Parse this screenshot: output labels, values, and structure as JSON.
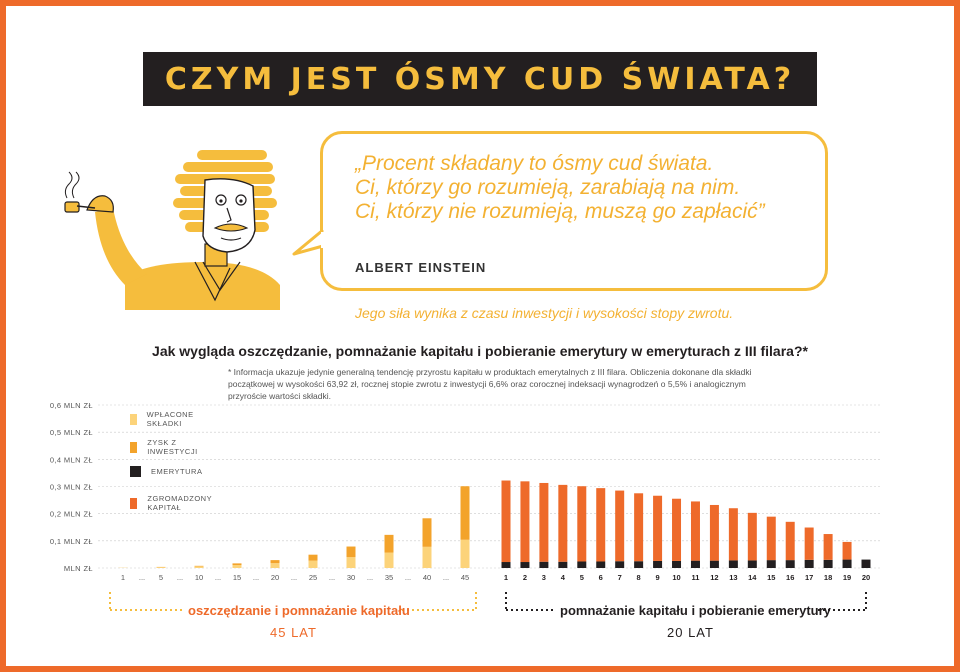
{
  "header": {
    "title": "CZYM JEST ÓSMY CUD ŚWIATA?"
  },
  "quote": {
    "text": "„Procent składany to ósmy cud świata.\nCi, którzy go rozumieją, zarabiają na nim.\nCi, którzy nie rozumieją, muszą go zapłacić”",
    "author": "ALBERT EINSTEIN"
  },
  "tagline": "Jego siła wynika z czasu inwestycji i wysokości stopy zwrotu.",
  "question": "Jak wygląda oszczędzanie, pomnażanie kapitału i pobieranie emerytury w emeryturach z III filara?*",
  "footnote": "* Informacja ukazuje jedynie generalną tendencję przyrostu kapitału w produktach emerytalnych z III filara. Obliczenia dokonane dla składki początkowej w wysokości 63,92 zł, rocznej stopie zwrotu z inwestycji 6,6% oraz corocznej indeksacji wynagrodzeń o 5,5% i analogicznym przyroście wartości składki.",
  "phases": {
    "saving": {
      "label": "oszczędzanie i pomnażanie kapitału",
      "years": "45 LAT"
    },
    "payout": {
      "label": "pomnażanie kapitału i pobieranie emerytury",
      "years": "20 LAT"
    }
  },
  "colors": {
    "contributions": "#fcd37a",
    "returns": "#f3a32b",
    "pension": "#231f20",
    "capital": "#ee6a2a",
    "accent": "#f5bd3d"
  },
  "chart_data": {
    "type": "bar",
    "y_ticks": [
      "MLN ZŁ",
      "0,1 MLN ZŁ",
      "0,2 MLN ZŁ",
      "0,3 MLN ZŁ",
      "0,4 MLN ZŁ",
      "0,5 MLN ZŁ",
      "0,6 MLN ZŁ"
    ],
    "ylim": [
      0,
      0.6
    ],
    "unit": "MLN ZŁ",
    "legend": [
      "WPŁACONE SKŁADKI",
      "ZYSK Z INWESTYCJI",
      "EMERYTURA",
      "ZGROMADZONY KAPITAŁ"
    ],
    "saving_phase": {
      "x_ticks": [
        "1",
        "...",
        "5",
        "...",
        "10",
        "...",
        "15",
        "...",
        "20",
        "...",
        "25",
        "...",
        "30",
        "...",
        "35",
        "...",
        "40",
        "...",
        "45"
      ],
      "categories": [
        "1",
        "5",
        "10",
        "15",
        "20",
        "25",
        "30",
        "35",
        "40",
        "45"
      ],
      "series": [
        {
          "name": "WPŁACONE SKŁADKI",
          "values": [
            0.001,
            0.003,
            0.006,
            0.011,
            0.018,
            0.027,
            0.04,
            0.057,
            0.078,
            0.104
          ]
        },
        {
          "name": "ZYSK Z INWESTYCJI",
          "values": [
            0.0,
            0.001,
            0.002,
            0.006,
            0.011,
            0.022,
            0.039,
            0.065,
            0.105,
            0.197
          ]
        }
      ]
    },
    "payout_phase": {
      "categories": [
        "1",
        "2",
        "3",
        "4",
        "5",
        "6",
        "7",
        "8",
        "9",
        "10",
        "11",
        "12",
        "13",
        "14",
        "15",
        "16",
        "17",
        "18",
        "19",
        "20"
      ],
      "series": [
        {
          "name": "EMERYTURA",
          "values": [
            0.022,
            0.022,
            0.023,
            0.023,
            0.024,
            0.024,
            0.025,
            0.025,
            0.026,
            0.026,
            0.027,
            0.027,
            0.028,
            0.028,
            0.029,
            0.029,
            0.03,
            0.03,
            0.031,
            0.031
          ]
        },
        {
          "name": "ZGROMADZONY KAPITAŁ",
          "values": [
            0.3,
            0.297,
            0.29,
            0.283,
            0.277,
            0.27,
            0.26,
            0.25,
            0.24,
            0.229,
            0.218,
            0.205,
            0.192,
            0.175,
            0.16,
            0.141,
            0.119,
            0.095,
            0.065,
            0.0
          ]
        }
      ]
    }
  }
}
